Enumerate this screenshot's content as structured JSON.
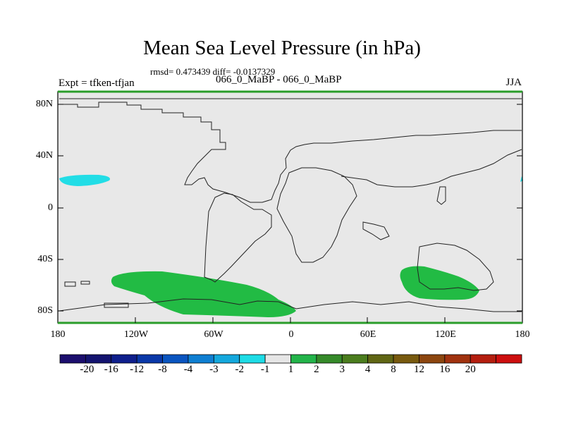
{
  "title": "Mean Sea Level Pressure (in hPa)",
  "stats": "rmsd= 0.473439 diff= -0.0137329",
  "expt_label": "Expt = tfken-tfjan",
  "expt_name": "066_0_MaBP - 066_0_MaBP",
  "season": "JJA",
  "lat_ticks": [
    "80N",
    "40N",
    "0",
    "40S",
    "80S"
  ],
  "lon_ticks": [
    "180",
    "120W",
    "60W",
    "0",
    "60E",
    "120E",
    "180"
  ],
  "colors": {
    "land_bg": "#e8e8e8",
    "positive_anomaly": "#22bb44",
    "negative_anomaly": "#22dde6",
    "frame": "#2a9d2a"
  },
  "colorbar": {
    "colors": [
      "#1c0f6e",
      "#141470",
      "#0f1f8c",
      "#0a38a8",
      "#0a55c0",
      "#0f7fd2",
      "#14a8dd",
      "#1edce6",
      "#e6e6e6",
      "#23b44a",
      "#358a2a",
      "#4b7d1e",
      "#606614",
      "#785a0f",
      "#8c460f",
      "#a0320f",
      "#b41e0f",
      "#cd0f0f"
    ],
    "labels": [
      "-20",
      "-16",
      "-12",
      "-8",
      "-4",
      "-3",
      "-2",
      "-1",
      "1",
      "2",
      "3",
      "4",
      "8",
      "12",
      "16",
      "20"
    ]
  }
}
